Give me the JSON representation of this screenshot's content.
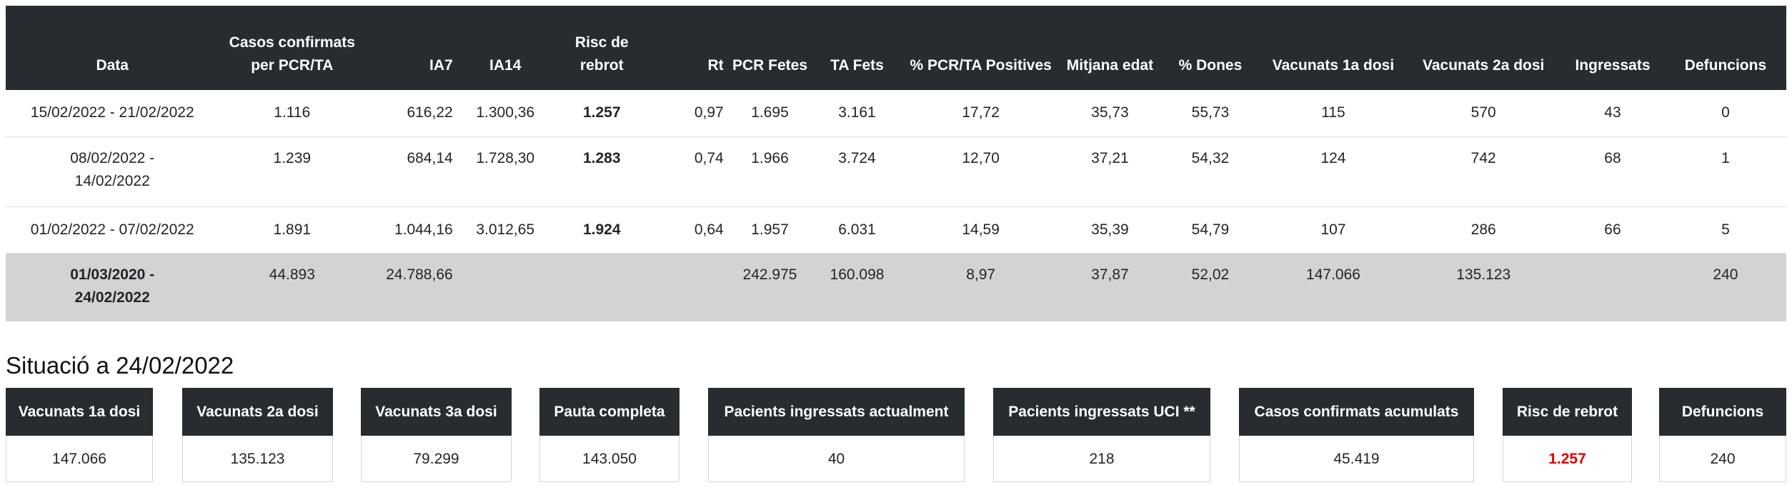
{
  "table": {
    "headers": [
      "Data",
      "Casos confirmats per PCR/TA",
      "IA7",
      "IA14",
      "Risc de rebrot",
      "Rt",
      "PCR Fetes",
      "TA Fets",
      "% PCR/TA Positives",
      "Mitjana edat",
      "% Dones",
      "Vacunats 1a dosi",
      "Vacunats 2a dosi",
      "Ingressats",
      "Defuncions"
    ],
    "rows": [
      [
        "15/02/2022 - 21/02/2022",
        "1.116",
        "616,22",
        "1.300,36",
        "1.257",
        "0,97",
        "1.695",
        "3.161",
        "17,72",
        "35,73",
        "55,73",
        "115",
        "570",
        "43",
        "0"
      ],
      [
        "08/02/2022 - 14/02/2022",
        "1.239",
        "684,14",
        "1.728,30",
        "1.283",
        "0,74",
        "1.966",
        "3.724",
        "12,70",
        "37,21",
        "54,32",
        "124",
        "742",
        "68",
        "1"
      ],
      [
        "01/02/2022 - 07/02/2022",
        "1.891",
        "1.044,16",
        "3.012,65",
        "1.924",
        "0,64",
        "1.957",
        "6.031",
        "14,59",
        "35,39",
        "54,79",
        "107",
        "286",
        "66",
        "5"
      ]
    ],
    "total": [
      "01/03/2020 - 24/02/2022",
      "44.893",
      "24.788,66",
      "",
      "",
      "",
      "242.975",
      "160.098",
      "8,97",
      "37,87",
      "52,02",
      "147.066",
      "135.123",
      "",
      "240"
    ]
  },
  "situation": {
    "title": "Situació a 24/02/2022",
    "cards": [
      {
        "label": "Vacunats 1a dosi",
        "value": "147.066"
      },
      {
        "label": "Vacunats 2a dosi",
        "value": "135.123"
      },
      {
        "label": "Vacunats 3a dosi",
        "value": "79.299"
      },
      {
        "label": "Pauta completa",
        "value": "143.050"
      },
      {
        "label": "Pacients ingressats actualment",
        "value": "40"
      },
      {
        "label": "Pacients ingressats UCI **",
        "value": "218"
      },
      {
        "label": "Casos confirmats acumulats",
        "value": "45.419"
      },
      {
        "label": "Risc de rebrot",
        "value": "1.257"
      },
      {
        "label": "Defuncions",
        "value": "240"
      }
    ]
  },
  "colors": {
    "header_bg": "#272c30",
    "risk_red": "#e00000",
    "total_row_bg": "#d3d3d3"
  }
}
